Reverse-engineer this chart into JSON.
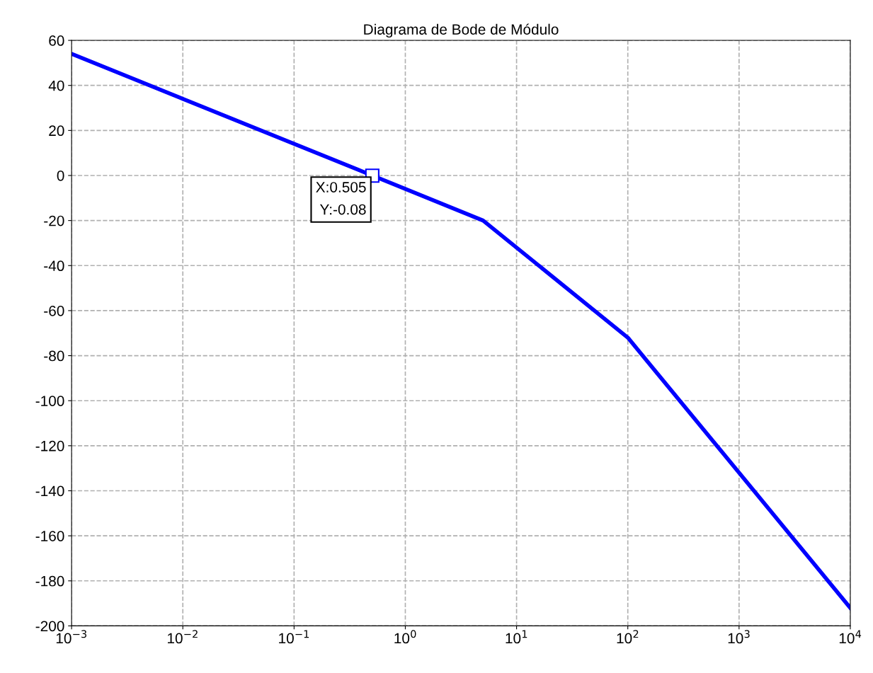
{
  "chart_data": {
    "type": "line",
    "title": "Diagrama de Bode de Módulo",
    "x": [
      0.001,
      0.505,
      5,
      100,
      10000
    ],
    "series": [
      {
        "color": "#0000ff",
        "values": [
          54,
          0,
          -20,
          -72,
          -192
        ]
      }
    ],
    "log": "x",
    "xlim": [
      0.001,
      10000
    ],
    "xticks": [
      {
        "value": 0.001,
        "label": "10$^{−3}$"
      },
      {
        "value": 0.01,
        "label": "10$^{−2}$"
      },
      {
        "value": 0.1,
        "label": "10$^{−1}$"
      },
      {
        "value": 1,
        "label": "10$^{0}$"
      },
      {
        "value": 10,
        "label": "10$^{1}$"
      },
      {
        "value": 100,
        "label": "10$^{2}$"
      },
      {
        "value": 1000,
        "label": "10$^{3}$"
      },
      {
        "value": 10000,
        "label": "10$^{4}$"
      }
    ],
    "ylim": [
      -200,
      60
    ],
    "yticks": [
      -200,
      -180,
      -160,
      -140,
      -120,
      -100,
      -80,
      -60,
      -40,
      -20,
      0,
      20,
      40,
      60
    ],
    "grid": true,
    "marker": "none",
    "line_style": "solid",
    "annotations": [
      {
        "text": "X:0.505\nY:-0.08",
        "x": 0.505,
        "y": -0.08
      }
    ]
  }
}
